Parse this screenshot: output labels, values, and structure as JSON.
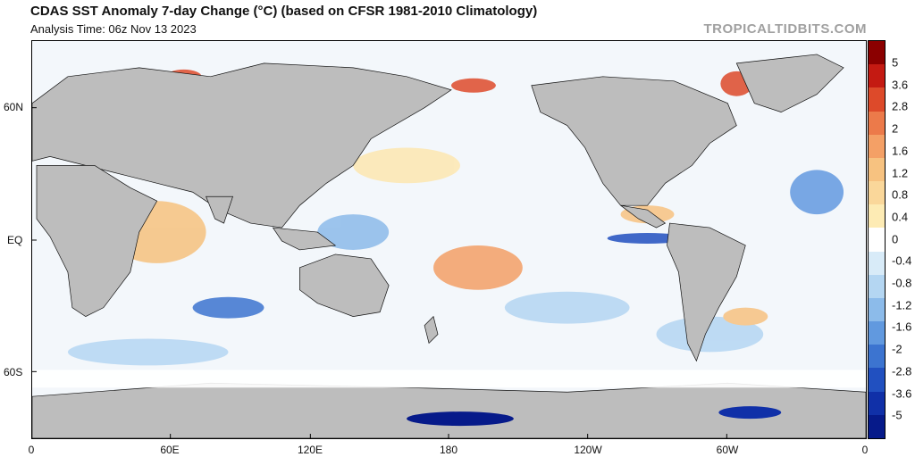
{
  "header": {
    "title": "CDAS SST Anomaly 7-day Change (°C) (based on CFSR 1981-2010 Climatology)",
    "analysis_time": "Analysis Time: 06z Nov 13 2023",
    "site": "TROPICALTIDBITS.COM"
  },
  "map": {
    "lat_labels": [
      "60N",
      "EQ",
      "60S"
    ],
    "lon_labels": [
      "0",
      "60E",
      "120E",
      "180",
      "120W",
      "60W",
      "0"
    ]
  },
  "colorbar": {
    "labels": [
      "5",
      "3.6",
      "2.8",
      "2",
      "1.6",
      "1.2",
      "0.8",
      "0.4",
      "0",
      "-0.4",
      "-0.8",
      "-1.2",
      "-1.6",
      "-2",
      "-2.8",
      "-3.6",
      "-5"
    ],
    "colors": [
      "#8b0000",
      "#c41a12",
      "#dd4a2a",
      "#ec7a4a",
      "#f4a066",
      "#f7c280",
      "#fad79a",
      "#fdebb4",
      "#ffffff",
      "#d8ebf8",
      "#b4d6f2",
      "#8cbbea",
      "#6199df",
      "#3c74d0",
      "#2150c0",
      "#1030a8",
      "#061a8a"
    ]
  },
  "colors": {
    "land": "#bdbdbd",
    "ocean_base": "#f3f7fb",
    "ice": "#ffffff"
  }
}
